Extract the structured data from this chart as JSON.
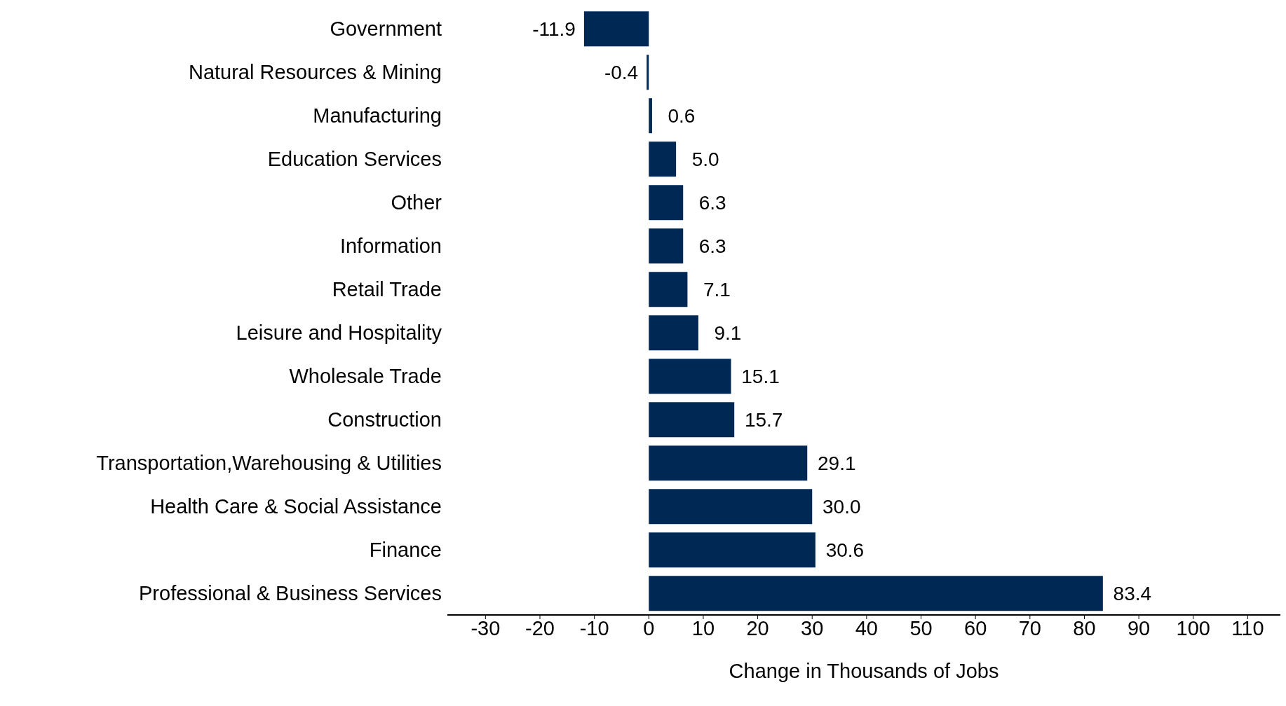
{
  "chart_data": {
    "type": "bar",
    "orientation": "horizontal",
    "xlabel": "Change in Thousands of Jobs",
    "categories": [
      "Government",
      "Natural Resources & Mining",
      "Manufacturing",
      "Education Services",
      "Other",
      "Information",
      "Retail Trade",
      "Leisure and Hospitality",
      "Wholesale Trade",
      "Construction",
      "Transportation,Warehousing & Utilities",
      "Health Care & Social Assistance",
      "Finance",
      "Professional & Business Services"
    ],
    "values": [
      -11.9,
      -0.4,
      0.6,
      5.0,
      6.3,
      6.3,
      7.1,
      9.1,
      15.1,
      15.7,
      29.1,
      30.0,
      30.6,
      83.4
    ],
    "value_labels": [
      "-11.9",
      "-0.4",
      "0.6",
      "5.0",
      "6.3",
      "6.3",
      "7.1",
      "9.1",
      "15.1",
      "15.7",
      "29.1",
      "30.0",
      "30.6",
      "83.4"
    ],
    "color": "#002855",
    "xlim": [
      -37,
      116
    ],
    "xticks": [
      -30,
      -20,
      -10,
      0,
      10,
      20,
      30,
      40,
      50,
      60,
      70,
      80,
      90,
      100,
      110
    ],
    "grid": false,
    "legend": false
  }
}
